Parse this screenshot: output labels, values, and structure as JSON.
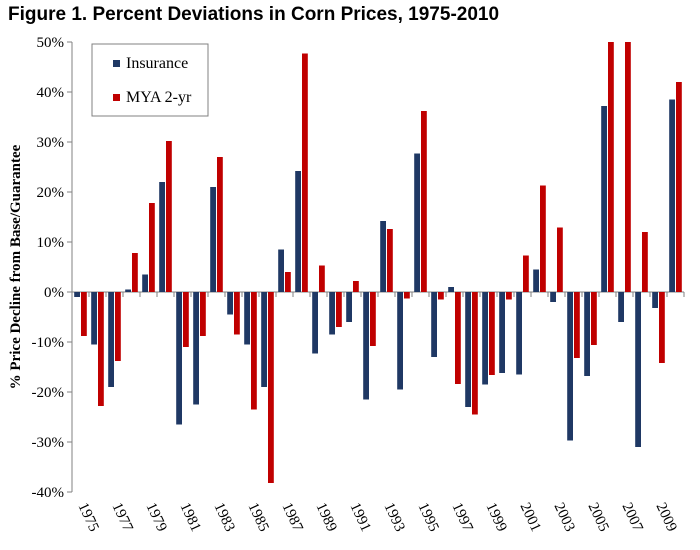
{
  "title": "Figure 1. Percent Deviations in Corn Prices, 1975-2010",
  "chart_data": {
    "type": "bar",
    "title": "Figure 1. Percent Deviations in Corn Prices, 1975-2010",
    "xlabel": "",
    "ylabel": "% Price Decline from Base/Guarantee",
    "ylim": [
      -40,
      50
    ],
    "yticks": [
      -40,
      -30,
      -20,
      -10,
      0,
      10,
      20,
      30,
      40,
      50
    ],
    "ytick_labels": [
      "-40%",
      "-30%",
      "-20%",
      "-10%",
      "0%",
      "10%",
      "20%",
      "30%",
      "40%",
      "50%"
    ],
    "grid": false,
    "legend_position": "top-left",
    "categories": [
      "1975",
      "1976",
      "1977",
      "1978",
      "1979",
      "1980",
      "1981",
      "1982",
      "1983",
      "1984",
      "1985",
      "1986",
      "1987",
      "1988",
      "1989",
      "1990",
      "1991",
      "1992",
      "1993",
      "1994",
      "1995",
      "1996",
      "1997",
      "1998",
      "1999",
      "2000",
      "2001",
      "2002",
      "2003",
      "2004",
      "2005",
      "2006",
      "2007",
      "2008",
      "2009",
      "2010"
    ],
    "xtick_labels": [
      "1975",
      "1977",
      "1979",
      "1981",
      "1983",
      "1985",
      "1987",
      "1989",
      "1991",
      "1993",
      "1995",
      "1997",
      "1999",
      "2001",
      "2003",
      "2005",
      "2007",
      "2009"
    ],
    "series": [
      {
        "name": "Insurance",
        "color": "#1f3864",
        "values": [
          -1,
          -10.5,
          -19,
          0.5,
          3.5,
          22,
          -26.5,
          -22.5,
          21,
          -4.5,
          -10.5,
          -19,
          8.5,
          24.2,
          -12.3,
          -8.5,
          -6,
          -21.5,
          14.2,
          -19.5,
          27.7,
          -13,
          1,
          -23,
          -18.5,
          -16.2,
          -16.5,
          4.5,
          -2,
          -29.7,
          -16.8,
          37.2,
          -6,
          -31,
          -3.2,
          38.5
        ]
      },
      {
        "name": "MYA 2-yr",
        "color": "#c00000",
        "values": [
          -8.8,
          -22.8,
          -13.8,
          7.8,
          17.8,
          30.2,
          -11,
          -8.8,
          27,
          -8.5,
          -23.5,
          -38.2,
          4,
          47.7,
          5.3,
          -7,
          2.2,
          -10.8,
          12.6,
          -1.3,
          36.2,
          -1.5,
          -18.4,
          -24.5,
          -16.6,
          -1.5,
          7.3,
          21.3,
          12.9,
          -13.2,
          -10.6,
          50,
          50,
          12,
          -14.2,
          42
        ]
      }
    ]
  }
}
